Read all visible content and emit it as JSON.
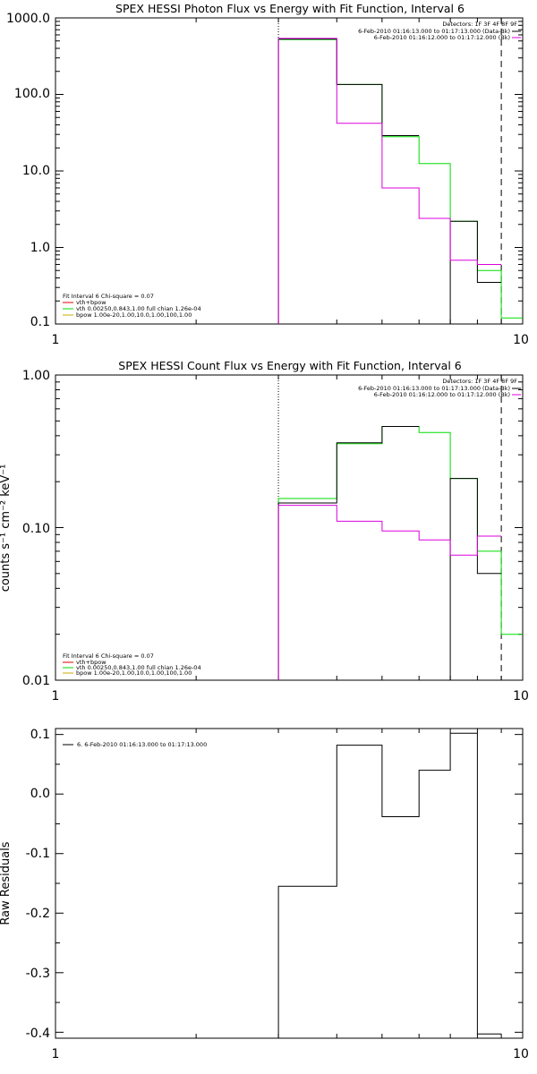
{
  "colors": {
    "background": "#ffffff",
    "axes": "#000000",
    "data": "#000000",
    "model_total": "#00dd00",
    "background_spectrum": "#dd00dd",
    "vth": "#00dd00",
    "bpow": "#ccaa00",
    "sum_model": "#dd0000"
  },
  "chart_data": [
    {
      "type": "line",
      "title": "SPEX HESSI Photon Flux vs Energy with Fit Function, Interval 6",
      "xlabel": "",
      "ylabel": "",
      "xscale": "log",
      "yscale": "log",
      "xlim": [
        1,
        10
      ],
      "ylim": [
        0.1,
        1000
      ],
      "xticks": [
        "1",
        "10"
      ],
      "yticks": [
        "1000.0",
        "100.0",
        "10.0",
        "1.0",
        "0.1"
      ],
      "vlines": [
        {
          "x": 3,
          "style": "dotted"
        },
        {
          "x": 9,
          "style": "dashed"
        }
      ],
      "bin_edges": [
        3,
        4,
        5,
        6,
        7,
        8,
        9,
        10
      ],
      "series": [
        {
          "values": [
            520,
            135,
            28,
            12.5,
            2.2,
            0.5,
            0.12
          ],
          "color_key": "model_total"
        },
        {
          "values": [
            530,
            135,
            29,
            null,
            2.2,
            0.35,
            null
          ],
          "color_key": "data"
        },
        {
          "values": [
            540,
            42,
            6,
            2.4,
            0.68,
            0.6,
            null
          ],
          "color_key": "background_spectrum"
        }
      ],
      "legend_top": [
        "Detectors: 1F 3F 4F 8F 9F",
        "6-Feb-2010 01:16:13.000 to 01:17:13.000 (Data-Bk)",
        "6-Feb-2010 01:16:12.000 to 01:17:12.000 (Bk)"
      ],
      "legend_bottom": {
        "header": "Fit Interval 6    Chi-square = 0.07",
        "items": [
          "vth+bpow",
          "vth 0.00250,0.843,1.00   full chian 1.26e-04",
          "bpow 1.00e-20,1.00,10.0,1.00,100,1.00"
        ]
      }
    },
    {
      "type": "line",
      "title": "SPEX HESSI Count Flux vs Energy with Fit Function, Interval 6",
      "xlabel": "",
      "ylabel": "counts s⁻¹ cm⁻² keV⁻¹",
      "xscale": "log",
      "yscale": "log",
      "xlim": [
        1,
        10
      ],
      "ylim": [
        0.01,
        1
      ],
      "xticks": [
        "1",
        "10"
      ],
      "yticks": [
        "1.00",
        "0.10",
        "0.01"
      ],
      "vlines": [
        {
          "x": 3,
          "style": "dotted"
        },
        {
          "x": 9,
          "style": "dashed"
        }
      ],
      "bin_edges": [
        3,
        4,
        5,
        6,
        7,
        8,
        9,
        10
      ],
      "series": [
        {
          "values": [
            0.155,
            0.355,
            0.46,
            0.42,
            0.21,
            0.07,
            0.02
          ],
          "color_key": "model_total"
        },
        {
          "values": [
            0.145,
            0.36,
            0.46,
            null,
            0.21,
            0.05,
            null
          ],
          "color_key": "data"
        },
        {
          "values": [
            0.14,
            0.11,
            0.095,
            0.083,
            0.066,
            0.088,
            null
          ],
          "color_key": "background_spectrum"
        }
      ],
      "legend_top": [
        "Detectors: 1F 3F 4F 8F 9F",
        "6-Feb-2010 01:16:13.000 to 01:17:13.000 (Data-Bk)",
        "6-Feb-2010 01:16:12.000 to 01:17:12.000 (Bk)"
      ],
      "legend_bottom": {
        "header": "Fit Interval 6    Chi-square = 0.07",
        "items": [
          "vth+bpow",
          "vth 0.00250,0.843,1.00   full chian 1.26e-04",
          "bpow 1.00e-20,1.00,10.0,1.00,100,1.00"
        ]
      }
    },
    {
      "type": "line",
      "title": "",
      "xlabel": "",
      "ylabel": "Raw Residuals",
      "xscale": "log",
      "yscale": "linear",
      "xlim": [
        1,
        10
      ],
      "ylim": [
        -0.41,
        0.11
      ],
      "xticks": [
        "1",
        "10"
      ],
      "yticks": [
        "0.1",
        "0.0",
        "-0.1",
        "-0.2",
        "-0.3",
        "-0.4"
      ],
      "bin_edges": [
        3,
        4,
        5,
        6,
        7,
        8,
        9
      ],
      "series": [
        {
          "values": [
            -0.155,
            0.082,
            -0.038,
            0.04,
            0.102,
            -0.403
          ],
          "color_key": "data"
        }
      ],
      "legend_top": [
        "6.  6-Feb-2010 01:16:13.000 to 01:17:13.000"
      ]
    }
  ]
}
